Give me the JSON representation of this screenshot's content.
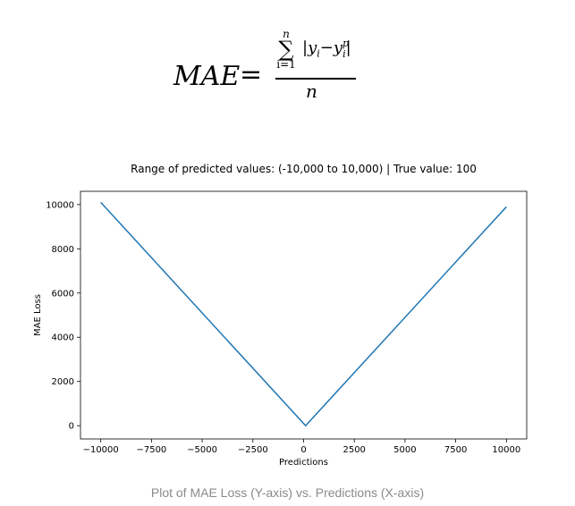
{
  "formula": {
    "lhs": "MAE",
    "eq": "=",
    "sum_top": "n",
    "sum_symbol": "∑",
    "sum_bottom": "i=1",
    "numerator_open": "|y",
    "numerator_sub1": "i",
    "numerator_minus": "−y",
    "numerator_sup": "p",
    "numerator_sub2": "i",
    "numerator_close": "|",
    "denominator": "n"
  },
  "chart_data": {
    "type": "line",
    "title": "Range of predicted values: (-10,000 to 10,000) | True value: 100",
    "xlabel": "Predictions",
    "ylabel": "MAE Loss",
    "xlim": [
      -11000,
      11000
    ],
    "ylim": [
      -600,
      10600
    ],
    "xticks": [
      -10000,
      -7500,
      -5000,
      -2500,
      0,
      2500,
      5000,
      7500,
      10000
    ],
    "xtick_labels": [
      "−10000",
      "−7500",
      "−5000",
      "−2500",
      "0",
      "2500",
      "5000",
      "7500",
      "10000"
    ],
    "yticks": [
      0,
      2000,
      4000,
      6000,
      8000,
      10000
    ],
    "ytick_labels": [
      "0",
      "2000",
      "4000",
      "6000",
      "8000",
      "10000"
    ],
    "grid": false,
    "series": [
      {
        "color": "#1f77b4",
        "x": [
          -10000,
          100,
          10000
        ],
        "y": [
          10100,
          0,
          9900
        ]
      }
    ]
  },
  "caption": "Plot of MAE Loss (Y-axis) vs. Predictions (X-axis)"
}
